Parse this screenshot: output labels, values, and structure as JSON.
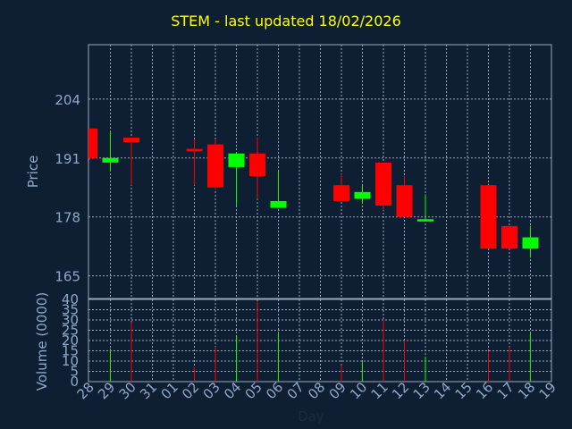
{
  "colors": {
    "background": "#0f1f33",
    "title": "#ffff00",
    "axis_text": "#8fa8c8",
    "grid": "#9aaabb",
    "up": "#00ff00",
    "down": "#ff0000"
  },
  "chart_data": [
    {
      "type": "candlestick",
      "title": "STEM - last updated 18/02/2026",
      "ylabel": "Price",
      "ylim": [
        160,
        216
      ],
      "yticks": [
        165,
        178,
        191,
        204
      ],
      "grid": true,
      "candles": [
        {
          "day": "28",
          "open": 197.5,
          "high": 197.5,
          "low": 190.5,
          "close": 191.0
        },
        {
          "day": "29",
          "open": 190.0,
          "high": 197.0,
          "low": 188.0,
          "close": 191.0
        },
        {
          "day": "30",
          "open": 195.5,
          "high": 195.5,
          "low": 185.0,
          "close": 194.5
        },
        {
          "day": "02",
          "open": 193.0,
          "high": 195.0,
          "low": 185.0,
          "close": 192.5
        },
        {
          "day": "03",
          "open": 194.0,
          "high": 195.0,
          "low": 184.0,
          "close": 184.5
        },
        {
          "day": "04",
          "open": 189.0,
          "high": 192.0,
          "low": 180.5,
          "close": 192.0
        },
        {
          "day": "05",
          "open": 192.0,
          "high": 195.5,
          "low": 182.0,
          "close": 187.0
        },
        {
          "day": "06",
          "open": 180.0,
          "high": 188.0,
          "low": 180.0,
          "close": 181.5
        },
        {
          "day": "09",
          "open": 185.0,
          "high": 187.5,
          "low": 181.5,
          "close": 181.5
        },
        {
          "day": "10",
          "open": 182.0,
          "high": 185.0,
          "low": 181.0,
          "close": 183.5
        },
        {
          "day": "11",
          "open": 190.0,
          "high": 190.0,
          "low": 179.5,
          "close": 180.5
        },
        {
          "day": "12",
          "open": 185.0,
          "high": 187.0,
          "low": 178.0,
          "close": 178.0
        },
        {
          "day": "13",
          "open": 177.0,
          "high": 183.0,
          "low": 177.0,
          "close": 177.5
        },
        {
          "day": "16",
          "open": 185.0,
          "high": 185.0,
          "low": 171.0,
          "close": 171.0
        },
        {
          "day": "17",
          "open": 176.0,
          "high": 176.0,
          "low": 171.0,
          "close": 171.0
        },
        {
          "day": "18",
          "open": 171.0,
          "high": 176.0,
          "low": 169.0,
          "close": 173.5
        }
      ]
    },
    {
      "type": "bar",
      "xlabel": "Day",
      "ylabel": "Volume (0000)",
      "ylim": [
        0,
        40
      ],
      "yticks": [
        0,
        5,
        10,
        15,
        20,
        25,
        30,
        35,
        40
      ],
      "grid": true,
      "categories": [
        "28",
        "29",
        "30",
        "31",
        "01",
        "02",
        "03",
        "04",
        "05",
        "06",
        "07",
        "08",
        "09",
        "10",
        "11",
        "12",
        "13",
        "14",
        "15",
        "16",
        "17",
        "18",
        "19"
      ],
      "bars": [
        {
          "day": "29",
          "value": 16,
          "direction": "up"
        },
        {
          "day": "30",
          "value": 29,
          "direction": "down"
        },
        {
          "day": "02",
          "value": 7,
          "direction": "down"
        },
        {
          "day": "03",
          "value": 17,
          "direction": "down"
        },
        {
          "day": "04",
          "value": 22,
          "direction": "up"
        },
        {
          "day": "05",
          "value": 39,
          "direction": "down"
        },
        {
          "day": "06",
          "value": 24,
          "direction": "up"
        },
        {
          "day": "09",
          "value": 8,
          "direction": "down"
        },
        {
          "day": "10",
          "value": 10,
          "direction": "up"
        },
        {
          "day": "11",
          "value": 30,
          "direction": "down"
        },
        {
          "day": "12",
          "value": 20,
          "direction": "down"
        },
        {
          "day": "13",
          "value": 12,
          "direction": "up"
        },
        {
          "day": "16",
          "value": 15,
          "direction": "down"
        },
        {
          "day": "17",
          "value": 17,
          "direction": "down"
        },
        {
          "day": "18",
          "value": 24,
          "direction": "up"
        }
      ]
    }
  ]
}
